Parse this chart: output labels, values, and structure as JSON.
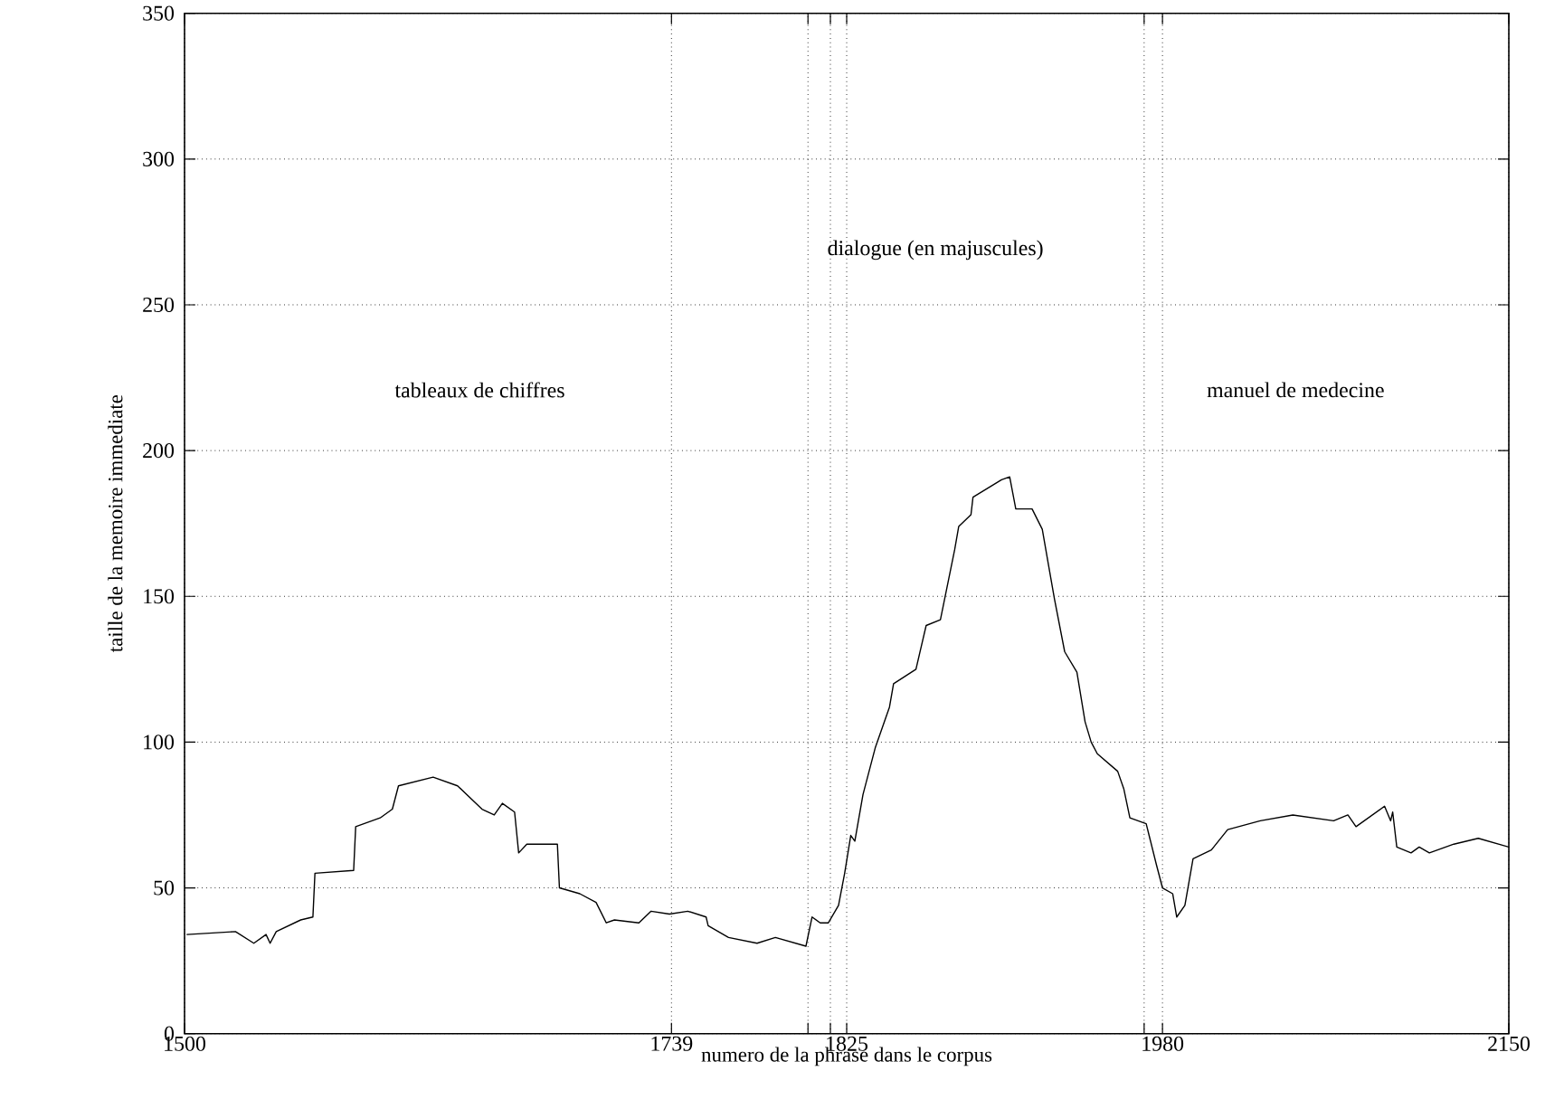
{
  "chart_data": {
    "type": "line",
    "xlabel": "numero de la phrase dans le corpus",
    "ylabel": "taille de la memoire immediate",
    "annotations": [
      "tableaux de chiffres",
      "dialogue (en majuscules)",
      "manuel de medecine"
    ],
    "xlim": [
      1500,
      2150
    ],
    "ylim": [
      0,
      350
    ],
    "xticks": [
      1500,
      1739,
      {
        "value": 1806,
        "label": null
      },
      {
        "value": 1817,
        "label": null
      },
      1825,
      {
        "value": 1971,
        "label": null
      },
      1980,
      2150
    ],
    "yticks": [
      0,
      50,
      100,
      150,
      200,
      250,
      300,
      350
    ],
    "grid": true,
    "line_style": "solid",
    "series": [
      {
        "color": "#000000",
        "x": [
          1501,
          1525,
          1534,
          1540,
          1542,
          1545,
          1557,
          1563,
          1564,
          1583,
          1584,
          1596,
          1602,
          1605,
          1622,
          1634,
          1646,
          1652,
          1656,
          1662,
          1664,
          1668,
          1683,
          1684,
          1694,
          1702,
          1707,
          1711,
          1723,
          1729,
          1738,
          1747,
          1756,
          1757,
          1767,
          1781,
          1790,
          1805,
          1808,
          1812,
          1816,
          1821,
          1824,
          1827,
          1829,
          1833,
          1839,
          1846,
          1848,
          1859,
          1864,
          1871,
          1878,
          1880,
          1886,
          1887,
          1901,
          1905,
          1908,
          1916,
          1921,
          1924,
          1927,
          1932,
          1938,
          1942,
          1945,
          1948,
          1958,
          1961,
          1964,
          1972,
          1977,
          1980,
          1985,
          1987,
          1991,
          1995,
          2004,
          2012,
          2028,
          2044,
          2064,
          2071,
          2075,
          2089,
          2092,
          2093,
          2095,
          2102,
          2106,
          2111,
          2123,
          2135,
          2150
        ],
        "values": [
          34,
          35,
          31,
          34,
          31,
          35,
          39,
          40,
          55,
          56,
          71,
          74,
          77,
          85,
          88,
          85,
          77,
          75,
          79,
          76,
          62,
          65,
          65,
          50,
          48,
          45,
          38,
          39,
          38,
          42,
          41,
          42,
          40,
          37,
          33,
          31,
          33,
          30,
          40,
          38,
          38,
          44,
          55,
          68,
          66,
          82,
          98,
          112,
          120,
          125,
          140,
          142,
          166,
          174,
          178,
          184,
          190,
          191,
          180,
          180,
          173,
          161,
          149,
          131,
          124,
          107,
          100,
          96,
          90,
          84,
          74,
          72,
          58,
          50,
          48,
          40,
          44,
          60,
          63,
          70,
          73,
          75,
          73,
          75,
          71,
          78,
          73,
          76,
          64,
          62,
          64,
          62,
          65,
          67,
          64
        ]
      }
    ]
  }
}
